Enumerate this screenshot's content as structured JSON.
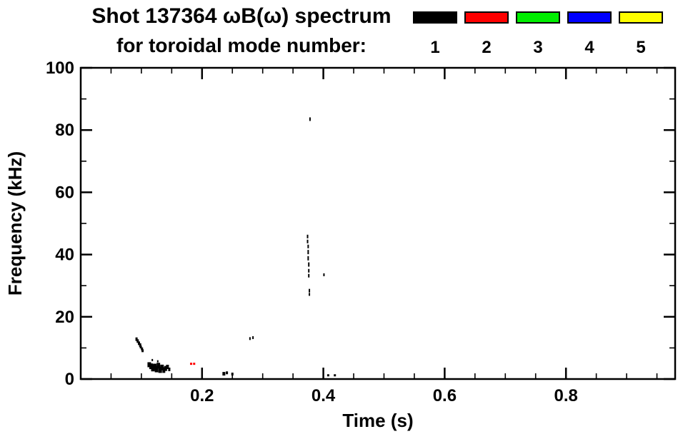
{
  "chart_data": {
    "type": "scatter",
    "title": "Shot 137364 ωB(ω) spectrum",
    "subtitle": "for toroidal mode number:",
    "xlabel": "Time (s)",
    "ylabel": "Frequency (kHz)",
    "xlim": [
      0.0,
      0.98
    ],
    "ylim": [
      0,
      100
    ],
    "grid": false,
    "xticks": {
      "major": [
        0.2,
        0.4,
        0.6,
        0.8
      ],
      "labels": [
        "0.2",
        "0.4",
        "0.6",
        "0.8"
      ],
      "minor_step": 0.05
    },
    "yticks": {
      "major": [
        0,
        20,
        40,
        60,
        80,
        100
      ],
      "labels": [
        "0",
        "20",
        "40",
        "60",
        "80",
        "100"
      ],
      "minor_step": 10
    },
    "legend": {
      "position": "top-right",
      "entries": [
        {
          "label": "1",
          "color": "#000000"
        },
        {
          "label": "2",
          "color": "#ff0000"
        },
        {
          "label": "3",
          "color": "#00ee00"
        },
        {
          "label": "4",
          "color": "#0000ff"
        },
        {
          "label": "5",
          "color": "#ffff00"
        }
      ]
    },
    "series": [
      {
        "name": "n=1",
        "color": "#000000",
        "points": [
          [
            0.092,
            12.8,
            3,
            5
          ],
          [
            0.094,
            12.2,
            3,
            5
          ],
          [
            0.096,
            11.5,
            3,
            5
          ],
          [
            0.098,
            10.9,
            3,
            5
          ],
          [
            0.099,
            10.3,
            3,
            4
          ],
          [
            0.101,
            9.7,
            3,
            4
          ],
          [
            0.102,
            9.1,
            3,
            4
          ],
          [
            0.113,
            4.6,
            5,
            7
          ],
          [
            0.116,
            4.1,
            5,
            8
          ],
          [
            0.118,
            6.1,
            2,
            3
          ],
          [
            0.119,
            3.5,
            5,
            9
          ],
          [
            0.122,
            3.9,
            5,
            9
          ],
          [
            0.125,
            3.2,
            5,
            9
          ],
          [
            0.127,
            5.7,
            2,
            3
          ],
          [
            0.128,
            4.3,
            5,
            8
          ],
          [
            0.131,
            3.0,
            5,
            9
          ],
          [
            0.134,
            3.7,
            5,
            8
          ],
          [
            0.137,
            2.9,
            4,
            8
          ],
          [
            0.14,
            3.4,
            4,
            7
          ],
          [
            0.143,
            3.9,
            4,
            6
          ],
          [
            0.146,
            3.1,
            3,
            5
          ],
          [
            0.236,
            1.7,
            4,
            5
          ],
          [
            0.241,
            2.0,
            3,
            4
          ],
          [
            0.25,
            1.6,
            3,
            4
          ],
          [
            0.279,
            13.0,
            2,
            4
          ],
          [
            0.284,
            13.3,
            2,
            4
          ],
          [
            0.374,
            45.8,
            2,
            5
          ],
          [
            0.374,
            44.2,
            2,
            5
          ],
          [
            0.375,
            42.6,
            2,
            5
          ],
          [
            0.375,
            40.8,
            2,
            6
          ],
          [
            0.375,
            38.8,
            2,
            6
          ],
          [
            0.376,
            36.8,
            2,
            6
          ],
          [
            0.376,
            34.8,
            2,
            5
          ],
          [
            0.376,
            33.2,
            2,
            5
          ],
          [
            0.377,
            28.4,
            2,
            5
          ],
          [
            0.377,
            27.2,
            2,
            4
          ],
          [
            0.378,
            83.5,
            2,
            5
          ],
          [
            0.401,
            33.5,
            2,
            4
          ],
          [
            0.408,
            1.2,
            3,
            3
          ],
          [
            0.419,
            1.2,
            3,
            3
          ]
        ]
      },
      {
        "name": "n=2",
        "color": "#ff0000",
        "points": [
          [
            0.182,
            4.9,
            3,
            3
          ],
          [
            0.187,
            4.9,
            3,
            3
          ]
        ]
      },
      {
        "name": "n=3",
        "color": "#00ee00",
        "points": []
      },
      {
        "name": "n=4",
        "color": "#0000ff",
        "points": []
      },
      {
        "name": "n=5",
        "color": "#ffff00",
        "points": []
      }
    ]
  }
}
